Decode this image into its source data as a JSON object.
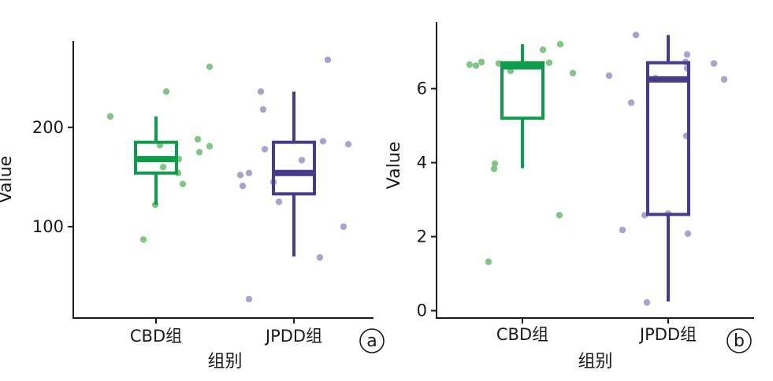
{
  "colors": {
    "CBD组": "#0e9b4b",
    "JPDD组": "#4a3a8a",
    "CBD组_points": "#7cc281",
    "JPDD组_points": "#a89dc9",
    "axis": "#1a1a1a"
  },
  "chart_data": [
    {
      "type": "box",
      "panel_label": "a",
      "xlabel": "组别",
      "ylabel": "Value",
      "categories": [
        "CBD组",
        "JPDD组"
      ],
      "ylim": [
        8,
        287
      ],
      "yticks": [
        100,
        200
      ],
      "grid": false,
      "legend": "none",
      "boxes": [
        {
          "group": "CBD组",
          "whisker_low": 122,
          "q1": 154,
          "median": 168,
          "q3": 185,
          "whisker_high": 211
        },
        {
          "group": "JPDD组",
          "whisker_low": 70,
          "q1": 133,
          "median": 154,
          "q3": 185,
          "whisker_high": 236
        }
      ],
      "points": [
        {
          "group": "CBD组",
          "values": [
            211,
            87,
            122,
            182,
            160,
            154,
            168,
            143,
            236,
            188,
            175,
            181,
            261
          ]
        },
        {
          "group": "JPDD组",
          "values": [
            152,
            141,
            154,
            236,
            218,
            178,
            145,
            125,
            27,
            167,
            186,
            268,
            183,
            100,
            69
          ]
        }
      ]
    },
    {
      "type": "box",
      "panel_label": "b",
      "xlabel": "组别",
      "ylabel": "Value",
      "categories": [
        "CBD组",
        "JPDD组"
      ],
      "ylim": [
        -0.2,
        7.8
      ],
      "yticks": [
        0,
        2,
        4,
        6
      ],
      "grid": false,
      "legend": "none",
      "boxes": [
        {
          "group": "CBD组",
          "whisker_low": 3.85,
          "q1": 5.2,
          "median": 6.6,
          "q3": 6.7,
          "whisker_high": 7.2
        },
        {
          "group": "JPDD组",
          "whisker_low": 0.25,
          "q1": 2.6,
          "median": 6.25,
          "q3": 6.7,
          "whisker_high": 7.45
        }
      ],
      "points": [
        {
          "group": "CBD组",
          "values": [
            6.65,
            6.62,
            6.72,
            3.97,
            3.83,
            1.32,
            6.68,
            6.48,
            7.05,
            6.7,
            7.2,
            6.42,
            2.58
          ]
        },
        {
          "group": "JPDD组",
          "values": [
            6.35,
            5.62,
            2.18,
            2.58,
            0.22,
            7.45,
            2.62,
            6.28,
            6.55,
            6.92,
            6.72,
            4.72,
            2.08,
            6.68,
            6.25
          ]
        }
      ]
    }
  ]
}
